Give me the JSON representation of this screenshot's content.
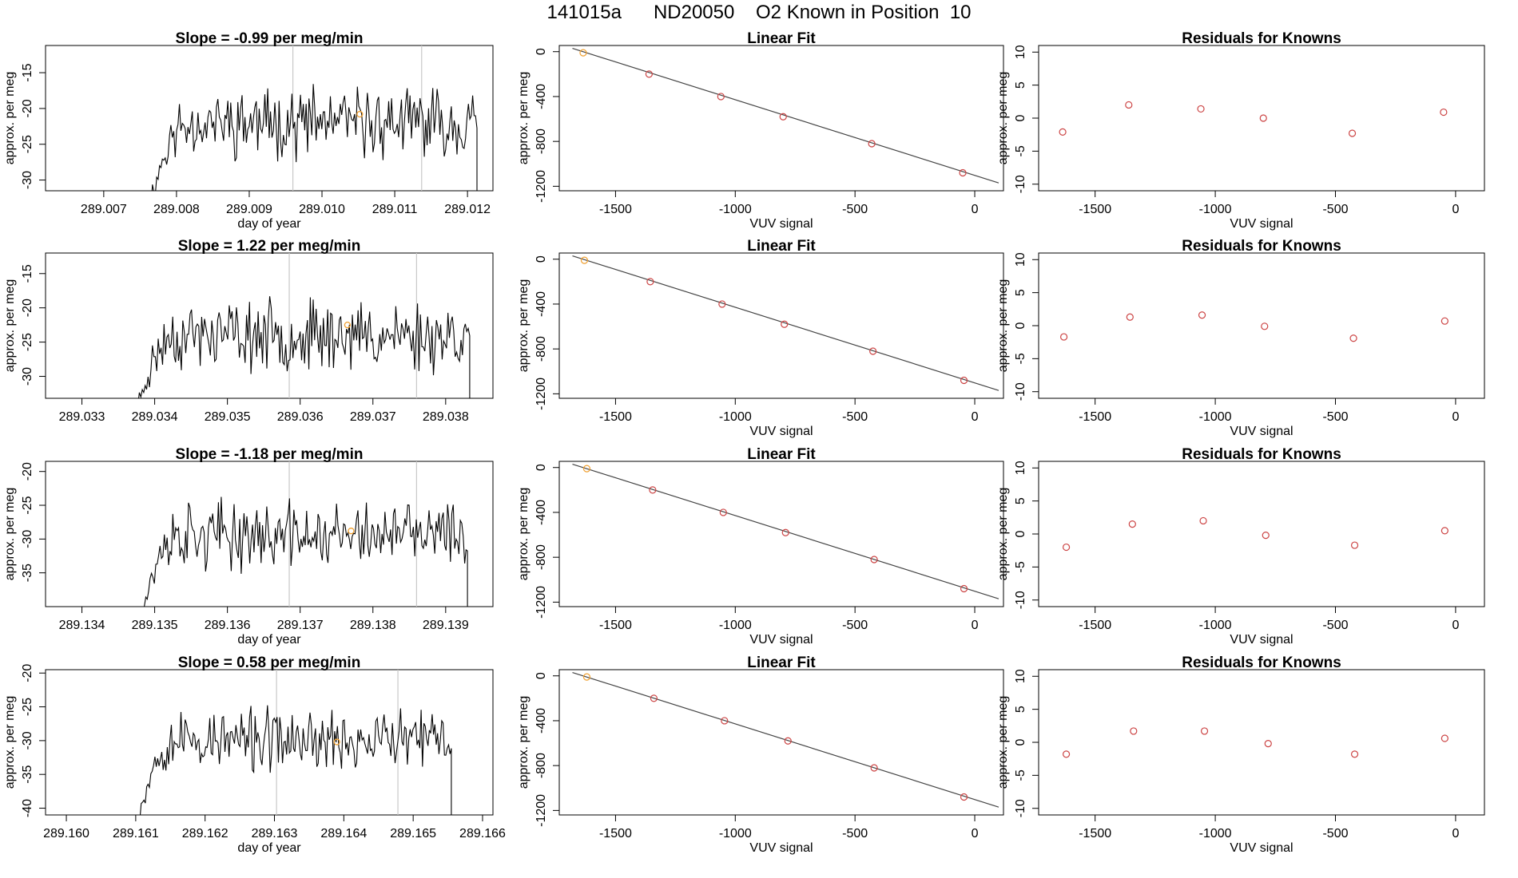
{
  "header": {
    "run_id": "141015a",
    "tank_id": "ND20050",
    "description": "O2 Known in Position  10"
  },
  "colors": {
    "line": "#000000",
    "fit_line": "#444444",
    "point_red": "#cc4444",
    "point_orange": "#f0a030",
    "vline": "#c8c8c8"
  },
  "chart_data": [
    {
      "type": "line",
      "panel": "timeseries",
      "title_prefix": "Slope = ",
      "slope": "-0.99",
      "title_suffix": " per meg/min",
      "xlabel": "day of year",
      "ylabel": "approx. per meg",
      "xlim": [
        289.0062,
        289.01235
      ],
      "ylim": [
        -31.5,
        -11.2
      ],
      "xticks": [
        "289.007",
        "289.008",
        "289.009",
        "289.010",
        "289.011",
        "289.012"
      ],
      "yticks": [
        "-30",
        "-25",
        "-20",
        "-15"
      ],
      "vlines": [
        289.0096,
        289.01137
      ],
      "highlight": [
        289.01052,
        -20.8
      ],
      "start": 289.00763,
      "end": 289.01213,
      "mean": -22.0,
      "amp": 3.4,
      "seed": 11
    },
    {
      "type": "line",
      "panel": "timeseries",
      "title_prefix": "Slope = ",
      "slope": "1.22",
      "title_suffix": " per meg/min",
      "xlabel": "",
      "ylabel": "approx. per meg",
      "xlim": [
        289.0325,
        289.03865
      ],
      "ylim": [
        -33.2,
        -12.0
      ],
      "xticks": [
        "289.033",
        "289.034",
        "289.035",
        "289.036",
        "289.037",
        "289.038"
      ],
      "yticks": [
        "-30",
        "-25",
        "-20",
        "-15"
      ],
      "vlines": [
        289.03585,
        289.0376
      ],
      "highlight": [
        289.03665,
        -22.5
      ],
      "start": 289.03375,
      "end": 289.03833,
      "mean": -24.0,
      "amp": 3.6,
      "seed": 23
    },
    {
      "type": "line",
      "panel": "timeseries",
      "title_prefix": "Slope = ",
      "slope": "-1.18",
      "title_suffix": " per meg/min",
      "xlabel": "day of year",
      "ylabel": "approx. per meg",
      "xlim": [
        289.1335,
        289.13965
      ],
      "ylim": [
        -40.0,
        -18.5
      ],
      "xticks": [
        "289.134",
        "289.135",
        "289.136",
        "289.137",
        "289.138",
        "289.139"
      ],
      "yticks": [
        "-35",
        "-30",
        "-25",
        "-20"
      ],
      "vlines": [
        289.13685,
        289.1386
      ],
      "highlight": [
        289.1377,
        -28.8
      ],
      "start": 289.1348,
      "end": 289.1393,
      "mean": -29.5,
      "amp": 3.6,
      "seed": 37
    },
    {
      "type": "line",
      "panel": "timeseries",
      "title_prefix": "Slope = ",
      "slope": "0.58",
      "title_suffix": " per meg/min",
      "xlabel": "day of year",
      "ylabel": "approx. per meg",
      "xlim": [
        289.1597,
        289.16615
      ],
      "ylim": [
        -41.0,
        -19.5
      ],
      "xticks": [
        "289.160",
        "289.161",
        "289.162",
        "289.163",
        "289.164",
        "289.165",
        "289.166"
      ],
      "yticks": [
        "-40",
        "-35",
        "-30",
        "-25",
        "-20"
      ],
      "vlines": [
        289.16303,
        289.16478
      ],
      "highlight": [
        289.1639,
        -30.2
      ],
      "start": 289.161,
      "end": 289.16555,
      "mean": -30.0,
      "amp": 3.3,
      "seed": 53
    },
    {
      "type": "scatter",
      "panel": "fit",
      "title": "Linear Fit",
      "xlabel": "VUV signal",
      "ylabel": "approx. per meg",
      "xlim": [
        -1735,
        120
      ],
      "ylim": [
        -1240,
        55
      ],
      "xticks": [
        "-1500",
        "-1000",
        "-500",
        "0"
      ],
      "yticks": [
        "0",
        "-400",
        "-800",
        "-1200"
      ],
      "x": [
        -1635,
        -1360,
        -1060,
        -800,
        -430,
        -50
      ],
      "y": [
        -10,
        -200,
        -400,
        -580,
        -820,
        -1080
      ],
      "line": [
        [
          -1680,
          30
        ],
        [
          100,
          -1170
        ]
      ]
    },
    {
      "type": "scatter",
      "panel": "fit",
      "title": "Linear Fit",
      "xlabel": "VUV signal",
      "ylabel": "approx. per meg",
      "xlim": [
        -1735,
        120
      ],
      "ylim": [
        -1240,
        55
      ],
      "xticks": [
        "-1500",
        "-1000",
        "-500",
        "0"
      ],
      "yticks": [
        "0",
        "-400",
        "-800",
        "-1200"
      ],
      "x": [
        -1630,
        -1355,
        -1055,
        -795,
        -425,
        -45
      ],
      "y": [
        -10,
        -200,
        -400,
        -580,
        -820,
        -1080
      ],
      "line": [
        [
          -1680,
          30
        ],
        [
          100,
          -1170
        ]
      ]
    },
    {
      "type": "scatter",
      "panel": "fit",
      "title": "Linear Fit",
      "xlabel": "VUV signal",
      "ylabel": "approx. per meg",
      "xlim": [
        -1735,
        120
      ],
      "ylim": [
        -1240,
        55
      ],
      "xticks": [
        "-1500",
        "-1000",
        "-500",
        "0"
      ],
      "yticks": [
        "0",
        "-400",
        "-800",
        "-1200"
      ],
      "x": [
        -1620,
        -1345,
        -1050,
        -790,
        -420,
        -45
      ],
      "y": [
        -10,
        -200,
        -400,
        -580,
        -820,
        -1080
      ],
      "line": [
        [
          -1680,
          30
        ],
        [
          100,
          -1170
        ]
      ]
    },
    {
      "type": "scatter",
      "panel": "fit",
      "title": "Linear Fit",
      "xlabel": "VUV signal",
      "ylabel": "approx. per meg",
      "xlim": [
        -1735,
        120
      ],
      "ylim": [
        -1240,
        55
      ],
      "xticks": [
        "-1500",
        "-1000",
        "-500",
        "0"
      ],
      "yticks": [
        "0",
        "-400",
        "-800",
        "-1200"
      ],
      "x": [
        -1620,
        -1340,
        -1045,
        -780,
        -420,
        -45
      ],
      "y": [
        -10,
        -200,
        -400,
        -580,
        -820,
        -1080
      ],
      "line": [
        [
          -1680,
          30
        ],
        [
          100,
          -1170
        ]
      ]
    },
    {
      "type": "scatter",
      "panel": "residuals",
      "title": "Residuals for Knowns",
      "xlabel": "VUV signal",
      "ylabel": "approx. per meg",
      "xlim": [
        -1735,
        120
      ],
      "ylim": [
        -11,
        11
      ],
      "xticks": [
        "-1500",
        "-1000",
        "-500",
        "0"
      ],
      "yticks": [
        "10",
        "5",
        "0",
        "-5",
        "-10"
      ],
      "x": [
        -1635,
        -1360,
        -1060,
        -800,
        -430,
        -50
      ],
      "y": [
        -2.1,
        2.0,
        1.4,
        0.0,
        -2.3,
        0.9
      ]
    },
    {
      "type": "scatter",
      "panel": "residuals",
      "title": "Residuals for Knowns",
      "xlabel": "VUV signal",
      "ylabel": "approx. per meg",
      "xlim": [
        -1735,
        120
      ],
      "ylim": [
        -11,
        11
      ],
      "xticks": [
        "-1500",
        "-1000",
        "-500",
        "0"
      ],
      "yticks": [
        "10",
        "5",
        "0",
        "-5",
        "-10"
      ],
      "x": [
        -1630,
        -1355,
        -1055,
        -795,
        -425,
        -45
      ],
      "y": [
        -1.7,
        1.3,
        1.6,
        -0.1,
        -1.9,
        0.7
      ]
    },
    {
      "type": "scatter",
      "panel": "residuals",
      "title": "Residuals for Knowns",
      "xlabel": "VUV signal",
      "ylabel": "approx. per meg",
      "xlim": [
        -1735,
        120
      ],
      "ylim": [
        -11,
        11
      ],
      "xticks": [
        "-1500",
        "-1000",
        "-500",
        "0"
      ],
      "yticks": [
        "10",
        "5",
        "0",
        "-5",
        "-10"
      ],
      "x": [
        -1620,
        -1345,
        -1050,
        -790,
        -420,
        -45
      ],
      "y": [
        -2.0,
        1.5,
        2.0,
        -0.2,
        -1.7,
        0.5
      ]
    },
    {
      "type": "scatter",
      "panel": "residuals",
      "title": "Residuals for Knowns",
      "xlabel": "VUV signal",
      "ylabel": "approx. per meg",
      "xlim": [
        -1735,
        120
      ],
      "ylim": [
        -11,
        11
      ],
      "xticks": [
        "-1500",
        "-1000",
        "-500",
        "0"
      ],
      "yticks": [
        "10",
        "5",
        "0",
        "-5",
        "-10"
      ],
      "x": [
        -1620,
        -1340,
        -1045,
        -780,
        -420,
        -45
      ],
      "y": [
        -1.8,
        1.7,
        1.7,
        -0.2,
        -1.8,
        0.6
      ]
    }
  ]
}
